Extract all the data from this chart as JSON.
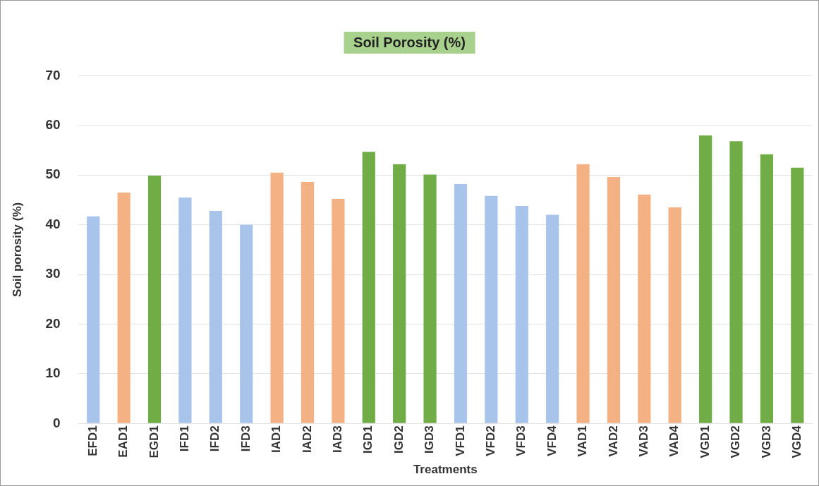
{
  "chart_data": {
    "type": "bar",
    "title": "Soil Porosity (%)",
    "xlabel": "Treatments",
    "ylabel": "Soil porosity (%)",
    "categories": [
      "EFD1",
      "EAD1",
      "EGD1",
      "IFD1",
      "IFD2",
      "IFD3",
      "IAD1",
      "IAD2",
      "IAD3",
      "IGD1",
      "IGD2",
      "IGD3",
      "VFD1",
      "VFD2",
      "VFD3",
      "VFD4",
      "VAD1",
      "VAD2",
      "VAD3",
      "VAD4",
      "VGD1",
      "VGD2",
      "VGD3",
      "VGD4"
    ],
    "values": [
      41.7,
      46.5,
      49.9,
      45.5,
      42.8,
      40,
      50.5,
      48.6,
      45.2,
      54.7,
      52.2,
      50.1,
      48.2,
      45.8,
      43.8,
      42,
      52.2,
      49.6,
      46.1,
      43.5,
      58,
      56.8,
      54.2,
      51.5
    ],
    "colors": [
      "#a9c4eb",
      "#f4b183",
      "#70ad47",
      "#a9c4eb",
      "#a9c4eb",
      "#a9c4eb",
      "#f4b183",
      "#f4b183",
      "#f4b183",
      "#70ad47",
      "#70ad47",
      "#70ad47",
      "#a9c4eb",
      "#a9c4eb",
      "#a9c4eb",
      "#a9c4eb",
      "#f4b183",
      "#f4b183",
      "#f4b183",
      "#f4b183",
      "#70ad47",
      "#70ad47",
      "#70ad47",
      "#70ad47"
    ],
    "ylim": [
      0,
      70
    ],
    "yticks": [
      0,
      10,
      20,
      30,
      40,
      50,
      60,
      70
    ],
    "grid": "y",
    "legend": false
  }
}
